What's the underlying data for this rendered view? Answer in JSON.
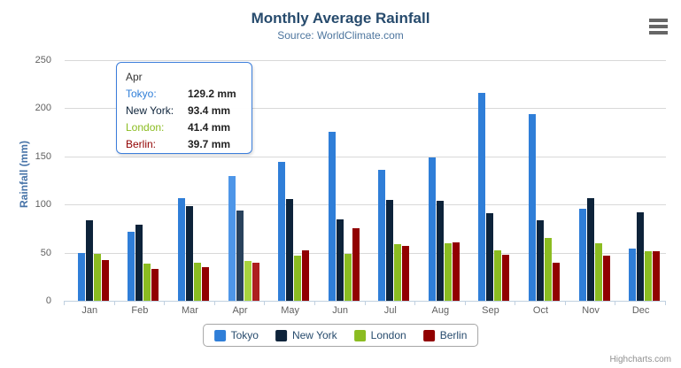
{
  "chart_data": {
    "type": "bar",
    "title": "Monthly Average Rainfall",
    "subtitle": "Source: WorldClimate.com",
    "categories": [
      "Jan",
      "Feb",
      "Mar",
      "Apr",
      "May",
      "Jun",
      "Jul",
      "Aug",
      "Sep",
      "Oct",
      "Nov",
      "Dec"
    ],
    "series": [
      {
        "name": "Tokyo",
        "color": "#2f7ed8",
        "hover_color": "#4e96e8",
        "values": [
          49.9,
          71.5,
          106.4,
          129.2,
          144.0,
          176.0,
          135.6,
          148.5,
          216.4,
          194.1,
          95.6,
          54.4
        ]
      },
      {
        "name": "New York",
        "color": "#0d233a",
        "hover_color": "#29425c",
        "values": [
          83.6,
          78.8,
          98.5,
          93.4,
          106.0,
          84.5,
          105.0,
          104.3,
          91.2,
          83.5,
          106.6,
          92.3
        ]
      },
      {
        "name": "London",
        "color": "#8bbc21",
        "hover_color": "#a8d43e",
        "values": [
          48.9,
          38.8,
          39.3,
          41.4,
          47.0,
          48.3,
          59.0,
          59.6,
          52.4,
          65.2,
          59.3,
          51.2
        ]
      },
      {
        "name": "Berlin",
        "color": "#910000",
        "hover_color": "#ad1f1f",
        "values": [
          42.4,
          33.2,
          34.5,
          39.7,
          52.6,
          75.5,
          57.4,
          60.4,
          47.6,
          39.1,
          46.8,
          51.1
        ]
      }
    ],
    "xlabel": "",
    "ylabel": "Rainfall (mm)",
    "ylim": [
      0,
      250
    ],
    "yticks": [
      0,
      50,
      100,
      150,
      200,
      250
    ],
    "grid": true,
    "legend_position": "bottom",
    "value_suffix": "mm",
    "highlighted_category": "Apr"
  },
  "tooltip": {
    "header": "Apr",
    "border_color": "#3c7edb",
    "rows": [
      {
        "label": "Tokyo:",
        "value": "129.2 mm",
        "color": "#2f7ed8"
      },
      {
        "label": "New York:",
        "value": "93.4 mm",
        "color": "#0d233a"
      },
      {
        "label": "London:",
        "value": "41.4 mm",
        "color": "#8bbc21"
      },
      {
        "label": "Berlin:",
        "value": "39.7 mm",
        "color": "#910000"
      }
    ]
  },
  "icons": {
    "menu": "hamburger-menu-icon"
  },
  "credits": {
    "label": "Highcharts.com"
  }
}
